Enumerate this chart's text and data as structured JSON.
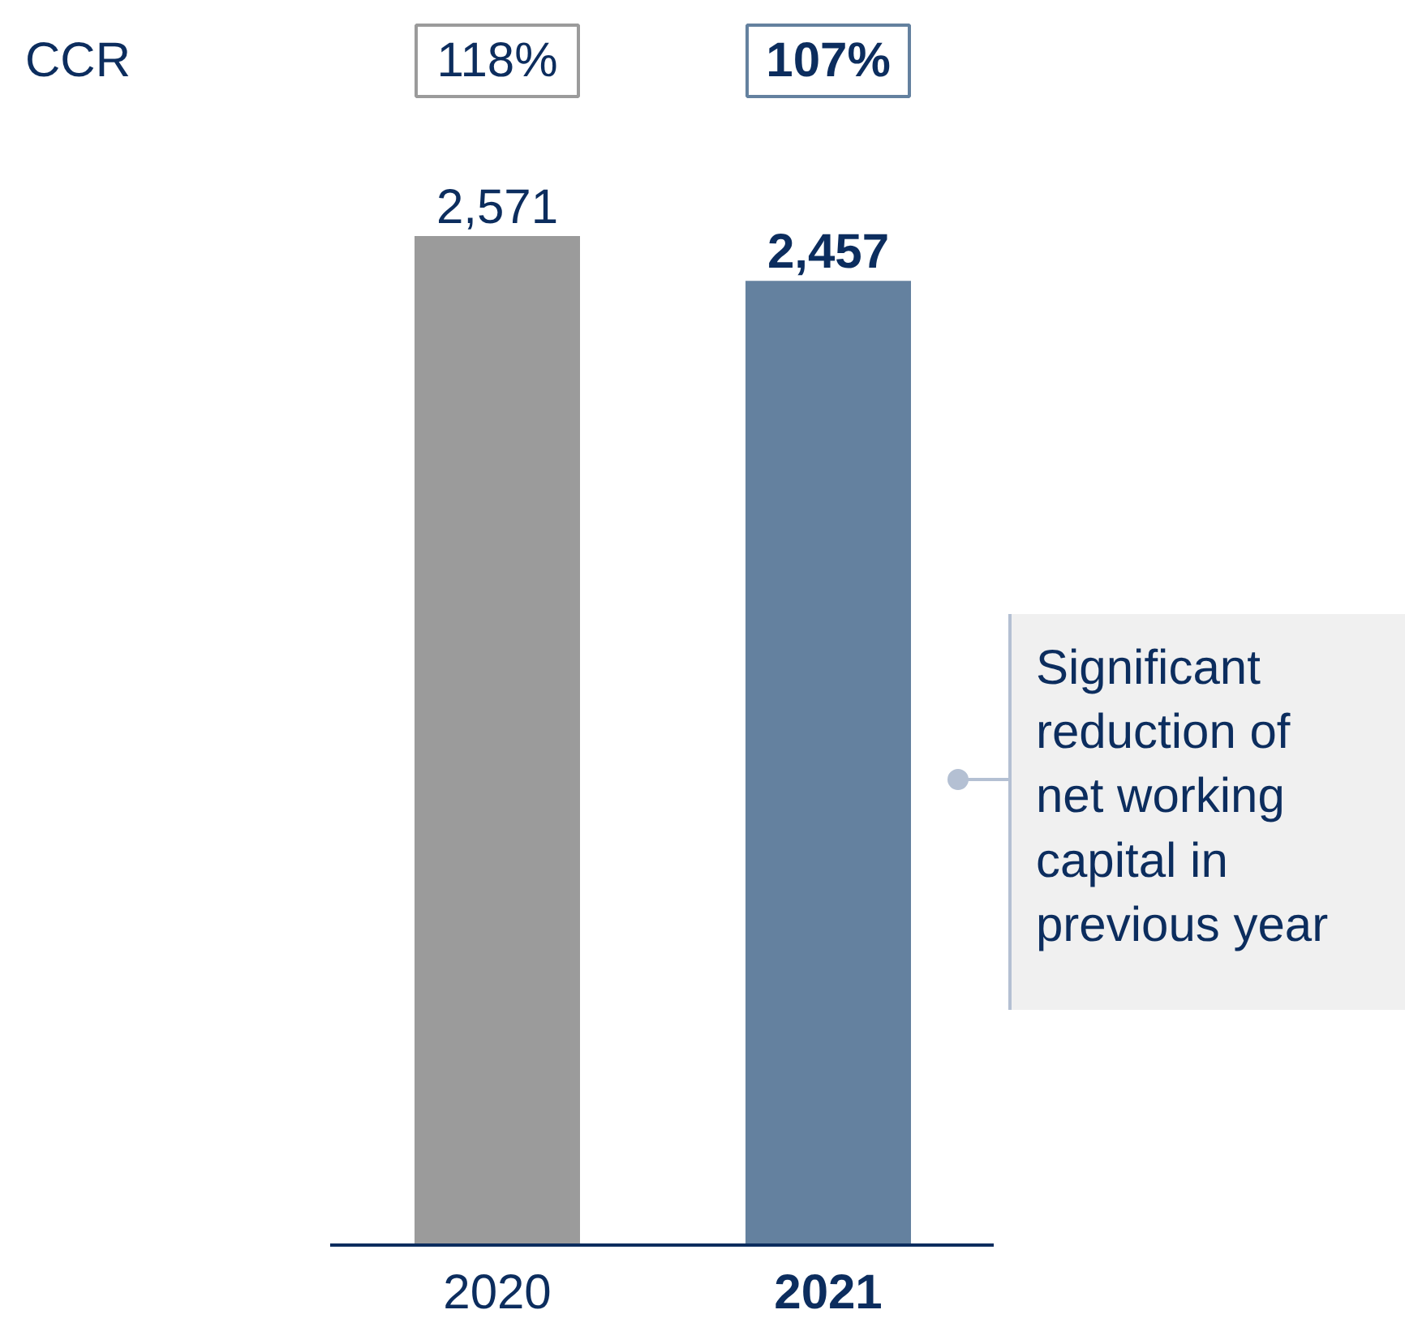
{
  "chart_data": {
    "type": "bar",
    "categories": [
      "2020",
      "2021"
    ],
    "values": [
      2571,
      2457
    ],
    "colors": [
      "#9b9b9b",
      "#64819f"
    ],
    "value_labels": [
      "2,571",
      "2,457"
    ],
    "annotations": [
      "CCR",
      "118%",
      "107%",
      "Significant reduction of net working capital in previous year"
    ]
  }
}
